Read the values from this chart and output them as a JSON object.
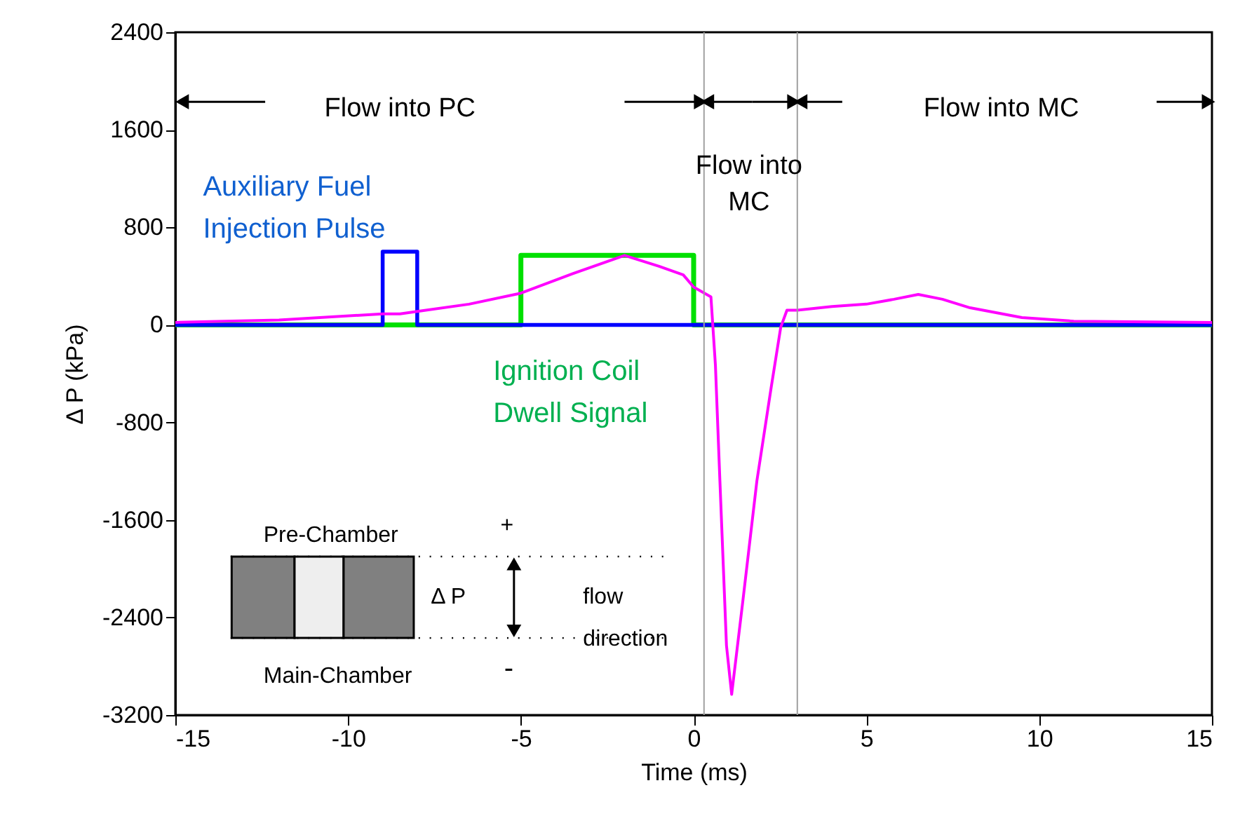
{
  "chart_data": {
    "type": "line",
    "xlabel": "Time (ms)",
    "ylabel": "Δ P (kPa)",
    "xlim": [
      -15,
      15
    ],
    "xticks": [
      -15,
      -10,
      -5,
      0,
      5,
      10,
      15
    ],
    "ylim": [
      -3200,
      2400
    ],
    "yticks": [
      -3200,
      -2400,
      -1600,
      -800,
      0,
      800,
      1600,
      2400
    ],
    "grid": false,
    "series": [
      {
        "name": "Ignition Coil\nDwell Signal",
        "color": "#00e000",
        "x": [
          -15,
          -5,
          -5,
          0,
          0,
          15
        ],
        "values": [
          0,
          0,
          570,
          570,
          0,
          0
        ]
      },
      {
        "name": "Auxiliary Fuel\nInjection Pulse",
        "color": "#0000ff",
        "x": [
          -15,
          -9,
          -9,
          -8,
          -8,
          15
        ],
        "values": [
          0,
          0,
          600,
          600,
          0,
          0
        ]
      },
      {
        "color": "#ff00ff",
        "x": [
          -15,
          -12,
          -9,
          -8.5,
          -8,
          -6.5,
          -5,
          -3.5,
          -2,
          -1,
          -0.3,
          0,
          0.5,
          0.63,
          0.76,
          0.95,
          1.1,
          1.43,
          1.83,
          2.24,
          2.52,
          2.7,
          3,
          4,
          5,
          5.8,
          6.5,
          7.2,
          8,
          9.5,
          11,
          15
        ],
        "values": [
          20,
          40,
          90,
          90,
          110,
          170,
          260,
          420,
          570,
          480,
          410,
          310,
          230,
          -330,
          -1280,
          -2630,
          -3030,
          -2250,
          -1280,
          -520,
          -20,
          120,
          120,
          150,
          170,
          210,
          250,
          210,
          140,
          60,
          30,
          20
        ]
      }
    ],
    "ref_lines": [
      {
        "axis": "x",
        "value": 0.3,
        "color": "#a0a0a0"
      },
      {
        "axis": "x",
        "value": 3,
        "color": "#a0a0a0"
      }
    ],
    "annotations": [
      "Flow into PC",
      "Flow into\nMC",
      "Flow into MC",
      "Pre-Chamber",
      "+",
      "Δ P",
      "flow\ndirection",
      "Main-Chamber",
      "-"
    ]
  }
}
